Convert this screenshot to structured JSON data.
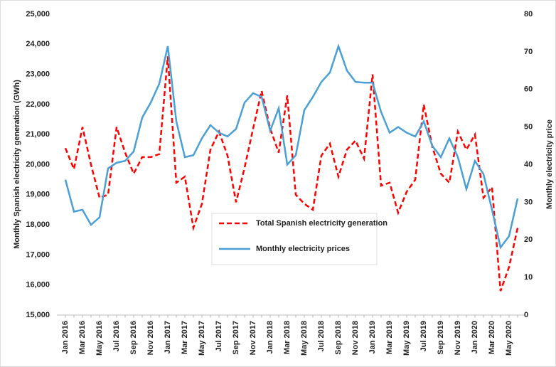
{
  "chart_data": {
    "type": "line",
    "categories": [
      "Jan 2016",
      null,
      "Mar 2016",
      null,
      "May 2016",
      null,
      "Jul 2016",
      null,
      "Sep 2016",
      null,
      "Nov 2016",
      null,
      "Jan 2017",
      null,
      "Mar 2017",
      null,
      "May 2017",
      null,
      "Jul 2017",
      null,
      "Sep 2017",
      null,
      "Nov 2017",
      null,
      "Jan 2018",
      null,
      "Mar 2018",
      null,
      "May 2018",
      null,
      "Jul 2018",
      null,
      "Sep 2018",
      null,
      "Nov 2018",
      null,
      "Jan 2019",
      null,
      "Mar 2019",
      null,
      "May 2019",
      null,
      "Jul 2019",
      null,
      "Sep 2019",
      null,
      "Nov 2019",
      null,
      "Jan 2020",
      null,
      "Mar 2020",
      null,
      "May 2020",
      null
    ],
    "series": [
      {
        "name": "Total Spanish electricity generation",
        "color": "#ff0000",
        "dashed": true,
        "values": [
          20550,
          19850,
          21250,
          20000,
          18900,
          19000,
          21250,
          20400,
          19700,
          20250,
          20250,
          20350,
          23600,
          19400,
          19600,
          17900,
          18700,
          20500,
          21100,
          20300,
          18750,
          19900,
          21200,
          22450,
          21200,
          20400,
          22300,
          19000,
          18700,
          18500,
          20300,
          20700,
          19600,
          20500,
          20800,
          20200,
          23000,
          19300,
          19400,
          18400,
          19100,
          19500,
          22000,
          20600,
          19700,
          19400,
          21100,
          20500,
          21000,
          18900,
          19250,
          15800,
          16600,
          17900
        ]
      },
      {
        "name": "Monthly electricity prices",
        "color": "#4a9fd4",
        "axis": "y2",
        "values": [
          36,
          27.5,
          28,
          24,
          26,
          39,
          40.5,
          41,
          43.5,
          52.5,
          56.5,
          61.5,
          71.5,
          51.5,
          42,
          42.5,
          47,
          50.5,
          48.5,
          47.5,
          49.5,
          56.5,
          59,
          58,
          49,
          55,
          40,
          42.5,
          54.5,
          58,
          62,
          64.5,
          71.5,
          65,
          62,
          61.8,
          61.8,
          54,
          48.5,
          50,
          48.5,
          47.5,
          51.5,
          45,
          42,
          47,
          42,
          33.5,
          41,
          37.5,
          28,
          18,
          21,
          31
        ]
      }
    ],
    "y_label": "Monthly Spanish electricity generation (GWh)",
    "y2_label": "Monthly electricity price",
    "ylim": [
      15000,
      25000
    ],
    "yticks": [
      {
        "value": 15000,
        "label": "15,000"
      },
      {
        "value": 16000,
        "label": "16,000"
      },
      {
        "value": 17000,
        "label": "17,000"
      },
      {
        "value": 18000,
        "label": "18,000"
      },
      {
        "value": 19000,
        "label": "19,000"
      },
      {
        "value": 20000,
        "label": "20,000"
      },
      {
        "value": 21000,
        "label": "21,000"
      },
      {
        "value": 22000,
        "label": "22,000"
      },
      {
        "value": 23000,
        "label": "23,000"
      },
      {
        "value": 24000,
        "label": "24,000"
      },
      {
        "value": 25000,
        "label": "25,000"
      }
    ],
    "y2lim": [
      0,
      80
    ],
    "y2ticks": [
      0,
      10,
      20,
      30,
      40,
      50,
      60,
      70,
      80
    ],
    "grid": false
  }
}
